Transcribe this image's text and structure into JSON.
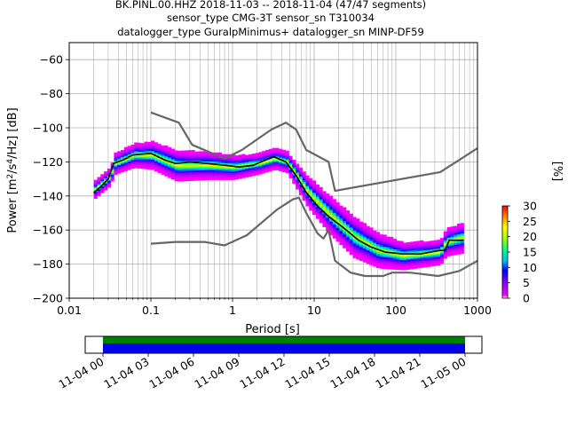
{
  "title_lines": [
    "BK.PINL.00.HHZ   2018-11-03 -- 2018-11-04  (47/47 segments)",
    "sensor_type CMG-3T sensor_sn T310034",
    "datalogger_type GuralpMinimus+ datalogger_sn MINP-DF59"
  ],
  "chart_data": {
    "type": "heatmap",
    "xlabel": "Period [s]",
    "ylabel": "Power [m²/s⁴/Hz] [dB]",
    "x_scale": "log",
    "xlim": [
      0.01,
      1000
    ],
    "ylim": [
      -200,
      -50
    ],
    "x_ticks": [
      0.01,
      0.1,
      1,
      10,
      100,
      1000
    ],
    "x_tick_labels": [
      "0.01",
      "0.1",
      "1",
      "10",
      "100",
      "1000"
    ],
    "y_ticks": [
      -200,
      -180,
      -160,
      -140,
      -120,
      -100,
      -80,
      -60
    ],
    "y_tick_labels": [
      "−200",
      "−180",
      "−160",
      "−140",
      "−120",
      "−100",
      "−80",
      "−60"
    ],
    "grid": true,
    "colorbar": {
      "label": "[%]",
      "range": [
        0,
        30
      ],
      "ticks": [
        0,
        5,
        10,
        15,
        20,
        25,
        30
      ],
      "tick_labels": [
        "0",
        "5",
        "10",
        "15",
        "20",
        "25",
        "30"
      ],
      "colormap": "pqlx"
    },
    "series": [
      {
        "name": "",
        "color": "#666666",
        "points": [
          [
            0.1,
            -91
          ],
          [
            0.22,
            -97
          ],
          [
            0.32,
            -110
          ],
          [
            0.8,
            -118
          ],
          [
            1.3,
            -113
          ],
          [
            3.0,
            -101
          ],
          [
            4.5,
            -97
          ],
          [
            6,
            -101
          ],
          [
            8,
            -113
          ],
          [
            15,
            -120
          ],
          [
            18,
            -137
          ],
          [
            350,
            -126
          ],
          [
            1000,
            -112
          ]
        ]
      },
      {
        "name": "",
        "color": "#666666",
        "points": [
          [
            0.1,
            -168
          ],
          [
            0.2,
            -167
          ],
          [
            0.45,
            -167
          ],
          [
            0.8,
            -169
          ],
          [
            1.5,
            -163
          ],
          [
            3.5,
            -148
          ],
          [
            5.5,
            -142
          ],
          [
            6.5,
            -141
          ],
          [
            8,
            -150
          ],
          [
            11,
            -162
          ],
          [
            13,
            -165
          ],
          [
            15,
            -160
          ],
          [
            18,
            -178
          ],
          [
            28,
            -185
          ],
          [
            42,
            -187
          ],
          [
            70,
            -187
          ],
          [
            90,
            -185
          ],
          [
            150,
            -185
          ],
          [
            330,
            -187
          ],
          [
            600,
            -184
          ],
          [
            1000,
            -178
          ]
        ]
      },
      {
        "name": "",
        "color": "#000000",
        "points": [
          [
            0.02,
            -138
          ],
          [
            0.025,
            -134
          ],
          [
            0.03,
            -130
          ],
          [
            0.035,
            -121
          ],
          [
            0.045,
            -119
          ],
          [
            0.06,
            -116
          ],
          [
            0.1,
            -115
          ],
          [
            0.15,
            -119
          ],
          [
            0.2,
            -121
          ],
          [
            0.3,
            -120
          ],
          [
            0.5,
            -121
          ],
          [
            0.8,
            -122
          ],
          [
            1.2,
            -123
          ],
          [
            1.8,
            -122
          ],
          [
            2.5,
            -119
          ],
          [
            3.2,
            -117
          ],
          [
            4.5,
            -120
          ],
          [
            6,
            -128
          ],
          [
            8,
            -138
          ],
          [
            11,
            -146
          ],
          [
            15,
            -152
          ],
          [
            22,
            -158
          ],
          [
            35,
            -166
          ],
          [
            50,
            -170
          ],
          [
            75,
            -173
          ],
          [
            120,
            -174
          ],
          [
            200,
            -174
          ],
          [
            340,
            -172
          ],
          [
            400,
            -172
          ],
          [
            450,
            -166
          ],
          [
            680,
            -166
          ]
        ]
      }
    ],
    "density_band": {
      "description_values": "percent occurrence cloud around the median",
      "center": [
        [
          0.02,
          -136
        ],
        [
          0.03,
          -129
        ],
        [
          0.035,
          -121
        ],
        [
          0.06,
          -116
        ],
        [
          0.1,
          -116
        ],
        [
          0.2,
          -122
        ],
        [
          0.5,
          -122
        ],
        [
          1,
          -123
        ],
        [
          2,
          -121
        ],
        [
          3.2,
          -118
        ],
        [
          4.5,
          -120
        ],
        [
          8,
          -137
        ],
        [
          15,
          -151
        ],
        [
          30,
          -164
        ],
        [
          60,
          -172
        ],
        [
          120,
          -175
        ],
        [
          340,
          -173
        ],
        [
          400,
          -167
        ],
        [
          680,
          -164
        ]
      ],
      "spread_db": [
        5,
        5,
        6,
        7,
        8,
        9,
        8,
        7,
        6,
        6,
        6,
        9,
        11,
        12,
        10,
        8,
        7,
        8,
        9
      ]
    }
  },
  "time_axis": {
    "tick_labels": [
      "11-04 00",
      "11-04 03",
      "11-04 06",
      "11-04 09",
      "11-04 12",
      "11-04 15",
      "11-04 18",
      "11-04 21",
      "11-05 00"
    ],
    "start": "11-04 00",
    "end": "11-05 00",
    "span_start": "11-03 22:48",
    "span_end": "11-05 01:12",
    "colors": {
      "used": "#0000ee",
      "coverage": "#008000"
    }
  }
}
